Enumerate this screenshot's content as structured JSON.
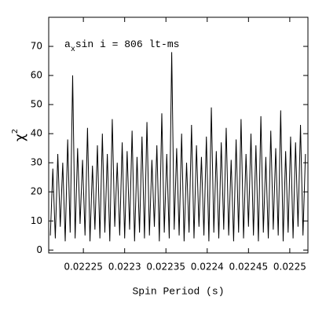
{
  "chart_data": {
    "type": "line",
    "annotation": {
      "base": "a",
      "sub": "x",
      "rest": "sin i = 806 lt-ms"
    },
    "y_label": {
      "base": "χ",
      "sup": "2"
    },
    "x_label": "Spin Period (s)",
    "xlim": [
      0.022208,
      0.022522
    ],
    "ylim": [
      -1,
      80
    ],
    "xticks": [
      0.02225,
      0.0223,
      0.02235,
      0.0224,
      0.02245,
      0.0225
    ],
    "yticks": [
      0,
      10,
      20,
      30,
      40,
      50,
      60,
      70
    ],
    "grid": false,
    "series": [
      {
        "color": "#000000",
        "x": [
          0.02221,
          0.022213,
          0.022216,
          0.022219,
          0.022222,
          0.022225,
          0.022228,
          0.022231,
          0.022234,
          0.022237,
          0.02224,
          0.022243,
          0.022246,
          0.022249,
          0.022252,
          0.022255,
          0.022258,
          0.022261,
          0.022264,
          0.022267,
          0.02227,
          0.022273,
          0.022276,
          0.022279,
          0.022282,
          0.022285,
          0.022288,
          0.022291,
          0.022294,
          0.022297,
          0.0223,
          0.022303,
          0.022306,
          0.022309,
          0.022312,
          0.022315,
          0.022318,
          0.022321,
          0.022324,
          0.022327,
          0.02233,
          0.022333,
          0.022336,
          0.022339,
          0.022342,
          0.022345,
          0.022348,
          0.022351,
          0.022354,
          0.022357,
          0.02236,
          0.022363,
          0.022366,
          0.022369,
          0.022372,
          0.022375,
          0.022378,
          0.022381,
          0.022384,
          0.022387,
          0.02239,
          0.022393,
          0.022396,
          0.022399,
          0.022402,
          0.022405,
          0.022408,
          0.022411,
          0.022414,
          0.022417,
          0.02242,
          0.022423,
          0.022426,
          0.022429,
          0.022432,
          0.022435,
          0.022438,
          0.022441,
          0.022444,
          0.022447,
          0.02245,
          0.022453,
          0.022456,
          0.022459,
          0.022462,
          0.022465,
          0.022468,
          0.022471,
          0.022474,
          0.022477,
          0.02248,
          0.022483,
          0.022486,
          0.022489,
          0.022492,
          0.022495,
          0.022498,
          0.022501,
          0.022504,
          0.022507,
          0.02251,
          0.022513,
          0.022516,
          0.022519
        ],
        "values": [
          5,
          28,
          4,
          33,
          8,
          30,
          3,
          38,
          6,
          60,
          4,
          35,
          9,
          31,
          5,
          42,
          3,
          29,
          7,
          36,
          4,
          40,
          6,
          33,
          3,
          45,
          8,
          30,
          5,
          37,
          4,
          34,
          7,
          41,
          3,
          32,
          6,
          39,
          4,
          44,
          5,
          31,
          8,
          36,
          3,
          47,
          6,
          33,
          4,
          68,
          7,
          35,
          5,
          40,
          3,
          30,
          6,
          43,
          4,
          36,
          8,
          32,
          5,
          39,
          3,
          49,
          6,
          34,
          4,
          37,
          7,
          42,
          5,
          31,
          3,
          38,
          6,
          45,
          4,
          33,
          8,
          40,
          5,
          36,
          3,
          46,
          6,
          32,
          4,
          41,
          7,
          35,
          5,
          48,
          3,
          34,
          6,
          39,
          4,
          37,
          8,
          43,
          5,
          33
        ]
      }
    ]
  }
}
